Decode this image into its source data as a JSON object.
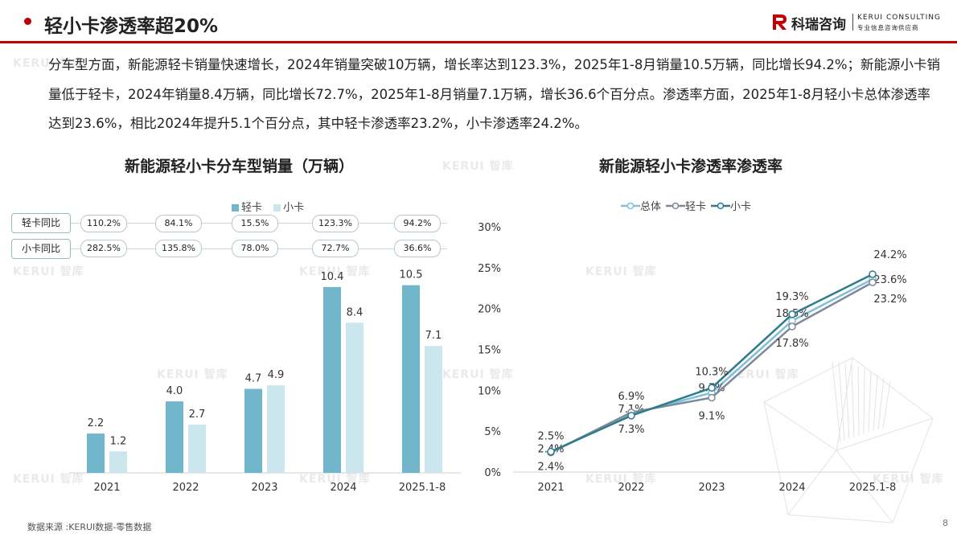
{
  "header": {
    "title": "轻小卡渗透率超20%",
    "logo_cn": "科瑞咨询",
    "logo_en": "KERUI CONSULTING",
    "logo_en_sub": "专业信息咨询供应商"
  },
  "body_text": "分车型方面，新能源轻卡销量快速增长，2024年销量突破10万辆，增长率达到123.3%，2025年1-8月销量10.5万辆，同比增长94.2%；新能源小卡销量低于轻卡，2024年销量8.4万辆，同比增长72.7%，2025年1-8月销量7.1万辆，增长36.6个百分点。渗透率方面，2025年1-8月轻小卡总体渗透率达到23.6%，相比2024年提升5.1个百分点，其中轻卡渗透率23.2%，小卡渗透率24.2%。",
  "watermark": "KERUI 智库",
  "footer": {
    "source": "数据来源 :KERUI数据-零售数据",
    "page": "8"
  },
  "colors": {
    "accent": "#c00000",
    "light_truck": "#72b6cc",
    "mini_truck": "#cce6ee",
    "total": "#7fbfdc",
    "light_line": "#7d8a9a",
    "mini_line": "#2f7b8c"
  },
  "growth_table": {
    "rows": [
      {
        "label": "轻卡同比",
        "values": [
          "110.2%",
          "84.1%",
          "15.5%",
          "123.3%",
          "94.2%"
        ]
      },
      {
        "label": "小卡同比",
        "values": [
          "282.5%",
          "135.8%",
          "78.0%",
          "72.7%",
          "36.6%"
        ]
      }
    ]
  },
  "chart_data": [
    {
      "type": "bar",
      "title": "新能源轻小卡分车型销量（万辆）",
      "categories": [
        "2021",
        "2022",
        "2023",
        "2024",
        "2025.1-8"
      ],
      "series": [
        {
          "name": "轻卡",
          "values": [
            2.2,
            4.0,
            4.7,
            10.4,
            10.5
          ],
          "labels": [
            "2.2",
            "4.0",
            "4.7",
            "10.4",
            "10.5"
          ]
        },
        {
          "name": "小卡",
          "values": [
            1.2,
            2.7,
            4.9,
            8.4,
            7.1
          ],
          "labels": [
            "1.2",
            "2.7",
            "4.9",
            "8.4",
            "7.1"
          ]
        }
      ],
      "ylim": [
        0,
        11.7
      ],
      "grid": false,
      "legend": "top-center"
    },
    {
      "type": "line",
      "title": "新能源轻小卡渗透率渗透率",
      "categories": [
        "2021",
        "2022",
        "2023",
        "2024",
        "2025.1-8"
      ],
      "yticks": [
        "0%",
        "5%",
        "10%",
        "15%",
        "20%",
        "25%",
        "30%"
      ],
      "ylim": [
        0,
        30
      ],
      "grid": false,
      "legend": "top-center",
      "series": [
        {
          "name": "总体",
          "values": [
            2.4,
            7.1,
            9.7,
            18.5,
            23.6
          ],
          "labels": [
            "2.4%",
            "7.1%",
            "9.7%",
            "18.5%",
            "23.6%"
          ]
        },
        {
          "name": "轻卡",
          "values": [
            2.4,
            7.3,
            9.1,
            17.8,
            23.2
          ],
          "labels": [
            "2.4%",
            "7.3%",
            "9.1%",
            "17.8%",
            "23.2%"
          ]
        },
        {
          "name": "小卡",
          "values": [
            2.5,
            6.9,
            10.3,
            19.3,
            24.2
          ],
          "labels": [
            "2.5%",
            "6.9%",
            "10.3%",
            "19.3%",
            "24.2%"
          ]
        }
      ]
    }
  ]
}
